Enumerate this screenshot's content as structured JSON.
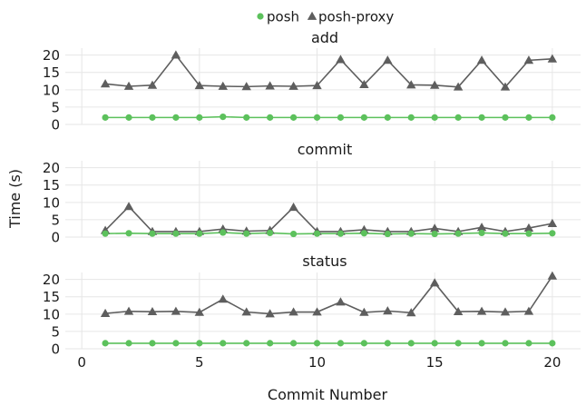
{
  "chart_data": {
    "type": "line",
    "xlabel": "Commit Number",
    "ylabel": "Time (s)",
    "xlim": [
      -0.7,
      21.2
    ],
    "ylim": [
      0,
      22
    ],
    "x_ticks": [
      0,
      5,
      10,
      15,
      20
    ],
    "y_ticks": [
      0,
      5,
      10,
      15,
      20
    ],
    "grid": true,
    "legend_position": "top-center",
    "series_styles": [
      {
        "name": "posh",
        "color": "#5cc15c",
        "marker": "circle"
      },
      {
        "name": "posh-proxy",
        "color": "#5e5e5e",
        "marker": "triangle"
      }
    ],
    "panels": [
      {
        "title": "add",
        "x": [
          1,
          2,
          3,
          4,
          5,
          6,
          7,
          8,
          9,
          10,
          11,
          12,
          13,
          14,
          15,
          16,
          17,
          18,
          19,
          20
        ],
        "series": [
          {
            "name": "posh",
            "values": [
              2.0,
              2.0,
              2.0,
              2.0,
              2.0,
              2.2,
              2.0,
              2.0,
              2.0,
              2.0,
              2.0,
              2.0,
              2.0,
              2.0,
              2.0,
              2.0,
              2.0,
              2.0,
              2.0,
              2.0
            ]
          },
          {
            "name": "posh-proxy",
            "values": [
              11.7,
              11.0,
              11.3,
              20.0,
              11.2,
              11.0,
              10.9,
              11.1,
              11.0,
              11.2,
              18.7,
              11.5,
              18.5,
              11.4,
              11.3,
              10.8,
              18.5,
              10.8,
              18.5,
              18.9
            ]
          }
        ]
      },
      {
        "title": "commit",
        "x": [
          1,
          2,
          3,
          4,
          5,
          6,
          7,
          8,
          9,
          10,
          11,
          12,
          13,
          14,
          15,
          16,
          17,
          18,
          19,
          20
        ],
        "series": [
          {
            "name": "posh",
            "values": [
              1.0,
              1.1,
              1.0,
              1.0,
              1.0,
              1.3,
              1.0,
              1.2,
              0.9,
              1.0,
              1.0,
              1.1,
              0.9,
              1.0,
              0.9,
              1.0,
              1.2,
              1.0,
              1.0,
              1.1
            ]
          },
          {
            "name": "posh-proxy",
            "values": [
              1.9,
              8.8,
              1.6,
              1.6,
              1.6,
              2.3,
              1.7,
              1.9,
              8.6,
              1.6,
              1.6,
              2.1,
              1.6,
              1.6,
              2.5,
              1.6,
              2.8,
              1.6,
              2.6,
              3.9
            ]
          }
        ]
      },
      {
        "title": "status",
        "x": [
          1,
          2,
          3,
          4,
          5,
          6,
          7,
          8,
          9,
          10,
          11,
          12,
          13,
          14,
          15,
          16,
          17,
          18,
          19,
          20
        ],
        "series": [
          {
            "name": "posh",
            "values": [
              1.6,
              1.6,
              1.6,
              1.6,
              1.6,
              1.6,
              1.6,
              1.6,
              1.6,
              1.6,
              1.6,
              1.6,
              1.6,
              1.6,
              1.6,
              1.6,
              1.6,
              1.6,
              1.6,
              1.6
            ]
          },
          {
            "name": "posh-proxy",
            "values": [
              10.2,
              10.8,
              10.7,
              10.8,
              10.5,
              14.3,
              10.6,
              10.1,
              10.6,
              10.6,
              13.5,
              10.5,
              10.9,
              10.4,
              19.0,
              10.7,
              10.8,
              10.6,
              10.8,
              21.0
            ]
          }
        ]
      }
    ]
  }
}
